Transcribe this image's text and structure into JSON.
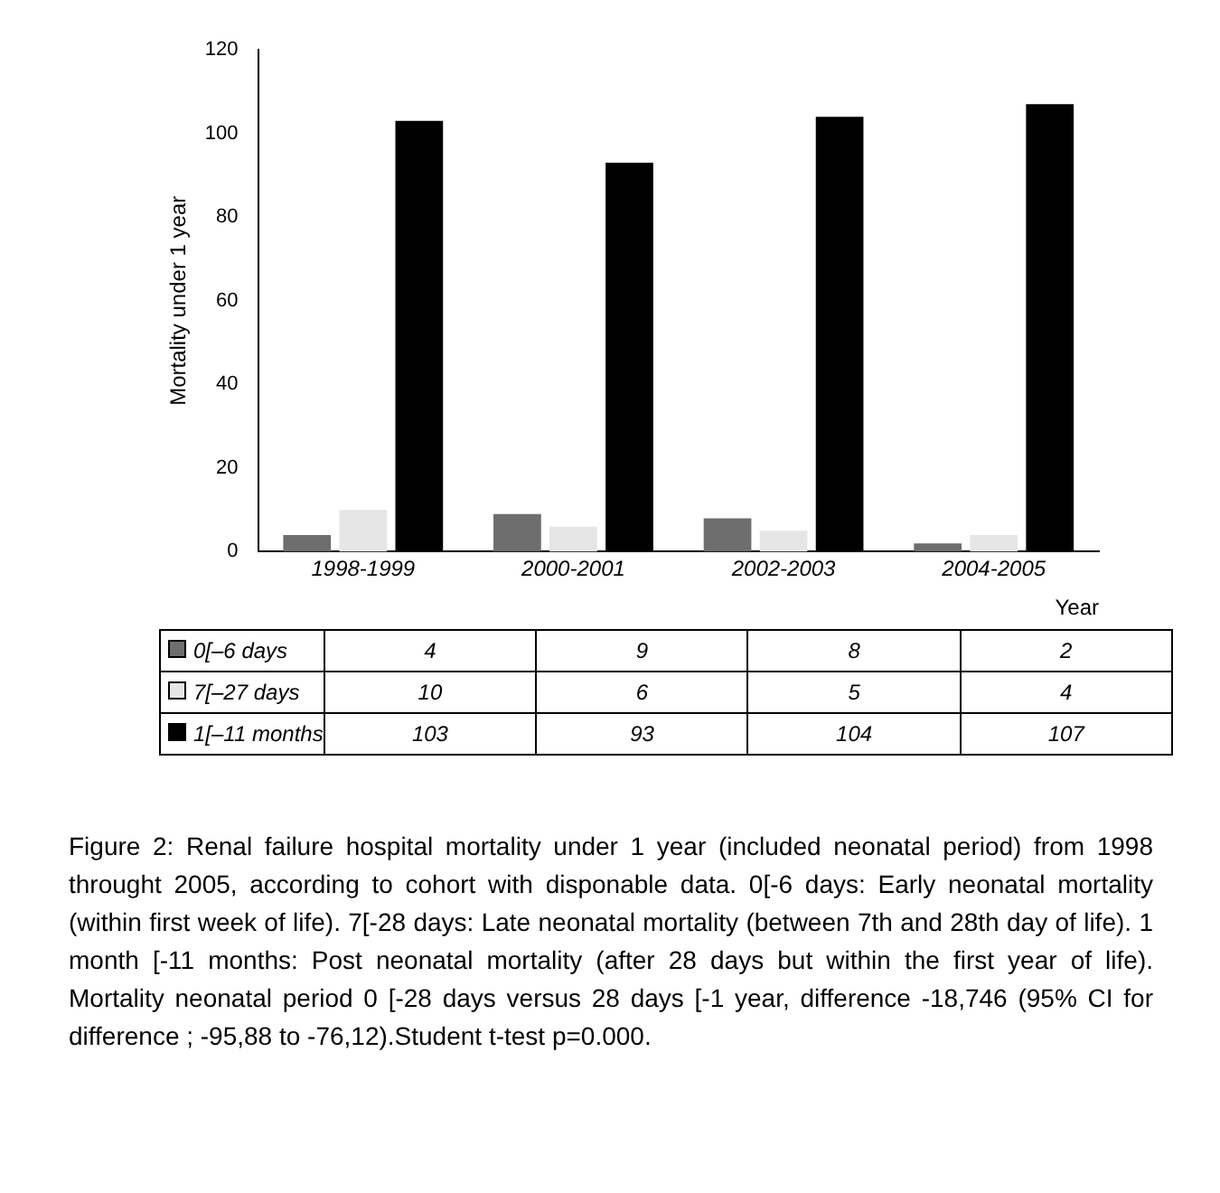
{
  "chart_data": {
    "type": "bar",
    "xlabel": "Year",
    "ylabel": "Mortality under 1 year",
    "categories": [
      "1998-1999",
      "2000-2001",
      "2002-2003",
      "2004-2005"
    ],
    "series": [
      {
        "name": "0[–6 days",
        "color": "#6e6e6e",
        "values": [
          4,
          9,
          8,
          2
        ]
      },
      {
        "name": "7[–27 days",
        "color": "#e6e6e6",
        "values": [
          10,
          6,
          5,
          4
        ]
      },
      {
        "name": "1[–11 months",
        "color": "#000000",
        "values": [
          103,
          93,
          104,
          107
        ]
      }
    ],
    "ylim": [
      0,
      120
    ],
    "yticks": [
      0,
      20,
      40,
      60,
      80,
      100,
      120
    ],
    "grid": false,
    "legend": "bottom",
    "data_labels": true,
    "annotations": [
      "Figure 2: Renal failure hospital mortality under 1 year (included neonatal period) from 1998 throught 2005, according to cohort with disponable data. 0[-6 days: Early neonatal mortality (within first week of life). 7[-28 days: Late neonatal mortality (between 7th and 28th day of life). 1 month [-11 months: Post neonatal mortality (after 28 days but within the first year of life). Mortality neonatal period 0 [-28 days versus 28 days [-1 year, difference -18,746 (95% CI for difference ; -95,88 to -76,12).Student t-test p=0.000."
    ]
  }
}
